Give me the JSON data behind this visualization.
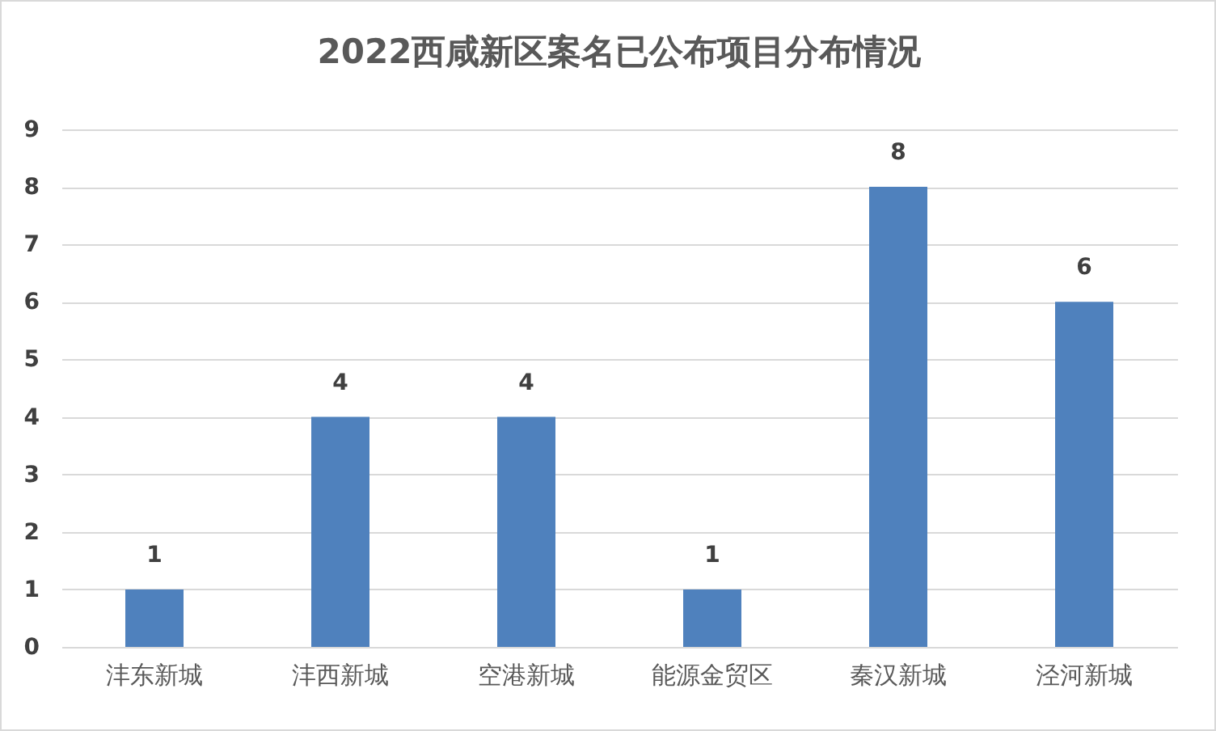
{
  "chart_data": {
    "type": "bar",
    "title": "2022西咸新区案名已公布项目分布情况",
    "categories": [
      "沣东新城",
      "沣西新城",
      "空港新城",
      "能源金贸区",
      "秦汉新城",
      "泾河新城"
    ],
    "values": [
      1,
      4,
      4,
      1,
      8,
      6
    ],
    "color": "#4f81bd",
    "ylim": [
      0,
      9
    ],
    "yticks": [
      0,
      1,
      2,
      3,
      4,
      5,
      6,
      7,
      8,
      9
    ],
    "grid": "y",
    "data_labels": true
  }
}
